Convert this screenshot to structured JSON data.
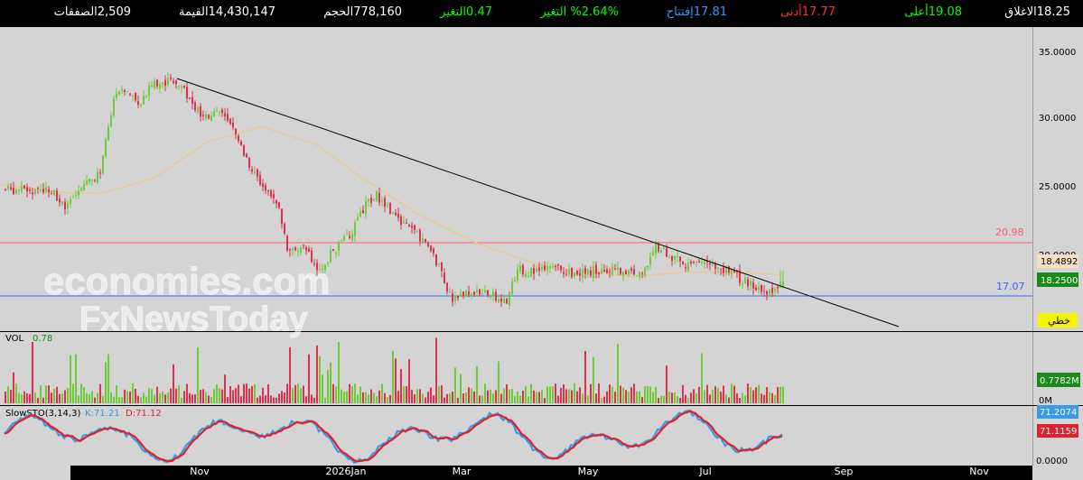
{
  "quote": {
    "close": {
      "label": "الاغلاق",
      "value": "18.25",
      "color": "#ffffff"
    },
    "high": {
      "label": "أعلى",
      "value": "19.08",
      "color": "#00ff00"
    },
    "low": {
      "label": "أدنى",
      "value": "17.77",
      "color": "#ff3030"
    },
    "open": {
      "label": "إفتتاح",
      "value": "17.81",
      "color": "#3399ff"
    },
    "chg_pct": {
      "label": "التغير %",
      "value": "2.64%",
      "color": "#00ff00"
    },
    "chg": {
      "label": "التغير",
      "value": "0.47",
      "color": "#00ff00"
    },
    "volume": {
      "label": "الحجم",
      "value": "778,160",
      "color": "#ffffff"
    },
    "value": {
      "label": "القيمة",
      "value": "14,430,147",
      "color": "#ffffff"
    },
    "trades": {
      "label": "الصفقات",
      "value": "2,509",
      "color": "#ffffff"
    }
  },
  "watermark": {
    "line1": "economies.com",
    "line2": "FxNewsToday"
  },
  "colors": {
    "up": "#6ecc3a",
    "down": "#e0304e",
    "bg": "#d4d4d4",
    "ma": "#e8c89a",
    "trendline": "#000000",
    "resistance": "#ff5a6e",
    "support": "#3366ff",
    "k_line": "#3b9ae8",
    "d_line": "#e0202a"
  },
  "chart_data": [
    {
      "type": "candlestick",
      "title": "",
      "x_ticks": [
        "Nov",
        "2026Jan",
        "Mar",
        "May",
        "Jul",
        "Sep",
        "Nov"
      ],
      "y_ticks": [
        "35.0000",
        "30.0000",
        "25.0000",
        "20.0000"
      ],
      "ylim": [
        15.5,
        36
      ],
      "levels": [
        {
          "value": 20.98,
          "label": "20.98",
          "color": "#ff5a6e"
        },
        {
          "value": 17.07,
          "label": "17.07",
          "color": "#3366ff"
        }
      ],
      "price_tags": [
        {
          "value": 18.4892,
          "label": "18.4892",
          "bg": "#f3e1c2",
          "fg": "#000000"
        },
        {
          "value": 18.25,
          "label": "18.2500",
          "bg": "#1a8a1a",
          "fg": "#ffffff"
        }
      ],
      "trendline_tag": "خطي",
      "trendline": {
        "from": [
          196,
          33.0
        ],
        "to": [
          995,
          15.4
        ]
      },
      "moving_average_anchors": [
        [
          0,
          25.4
        ],
        [
          60,
          24.8
        ],
        [
          110,
          24.7
        ],
        [
          170,
          25.8
        ],
        [
          230,
          28.5
        ],
        [
          290,
          29.6
        ],
        [
          350,
          28.3
        ],
        [
          400,
          25.9
        ],
        [
          460,
          23.3
        ],
        [
          530,
          21.0
        ],
        [
          600,
          19.4
        ],
        [
          650,
          19.0
        ],
        [
          700,
          18.6
        ],
        [
          760,
          18.95
        ],
        [
          820,
          18.9
        ],
        [
          868,
          18.75
        ]
      ],
      "price_path": [
        [
          5,
          25.0
        ],
        [
          35,
          24.9
        ],
        [
          55,
          25.1
        ],
        [
          72,
          23.5
        ],
        [
          90,
          25.4
        ],
        [
          110,
          26.2
        ],
        [
          125,
          31.6
        ],
        [
          138,
          32.2
        ],
        [
          152,
          31.3
        ],
        [
          166,
          32.6
        ],
        [
          178,
          32.9
        ],
        [
          200,
          32.9
        ],
        [
          210,
          31.4
        ],
        [
          225,
          30.1
        ],
        [
          240,
          30.9
        ],
        [
          255,
          29.6
        ],
        [
          270,
          27.5
        ],
        [
          290,
          25.1
        ],
        [
          305,
          24.2
        ],
        [
          318,
          20.5
        ],
        [
          335,
          20.8
        ],
        [
          350,
          19.1
        ],
        [
          370,
          20.6
        ],
        [
          390,
          22.0
        ],
        [
          402,
          23.7
        ],
        [
          415,
          24.6
        ],
        [
          430,
          23.6
        ],
        [
          450,
          22.3
        ],
        [
          470,
          21.2
        ],
        [
          485,
          19.3
        ],
        [
          500,
          16.9
        ],
        [
          520,
          17.5
        ],
        [
          540,
          17.3
        ],
        [
          560,
          16.9
        ],
        [
          572,
          19.1
        ],
        [
          590,
          18.9
        ],
        [
          610,
          19.2
        ],
        [
          640,
          18.8
        ],
        [
          660,
          19.1
        ],
        [
          690,
          19.0
        ],
        [
          712,
          18.8
        ],
        [
          726,
          20.9
        ],
        [
          745,
          19.9
        ],
        [
          760,
          19.4
        ],
        [
          778,
          19.6
        ],
        [
          800,
          19.2
        ],
        [
          820,
          18.4
        ],
        [
          838,
          17.9
        ],
        [
          846,
          17.2
        ],
        [
          855,
          17.6
        ],
        [
          868,
          18.25
        ]
      ],
      "series": [
        {
          "name": "VOL",
          "value_label": "0.78",
          "current_tag": "0.7782M",
          "ylim": [
            0,
            3.5
          ],
          "y_ticks": [
            "0M"
          ]
        },
        {
          "name": "SlowSTO(3,14,3)",
          "k_label": "K:71.21",
          "d_label": "D:71.12",
          "k_tag": "71.2074",
          "d_tag": "71.1159",
          "ylim": [
            0,
            100
          ],
          "y_ticks": [
            "0.0000"
          ]
        }
      ]
    }
  ]
}
